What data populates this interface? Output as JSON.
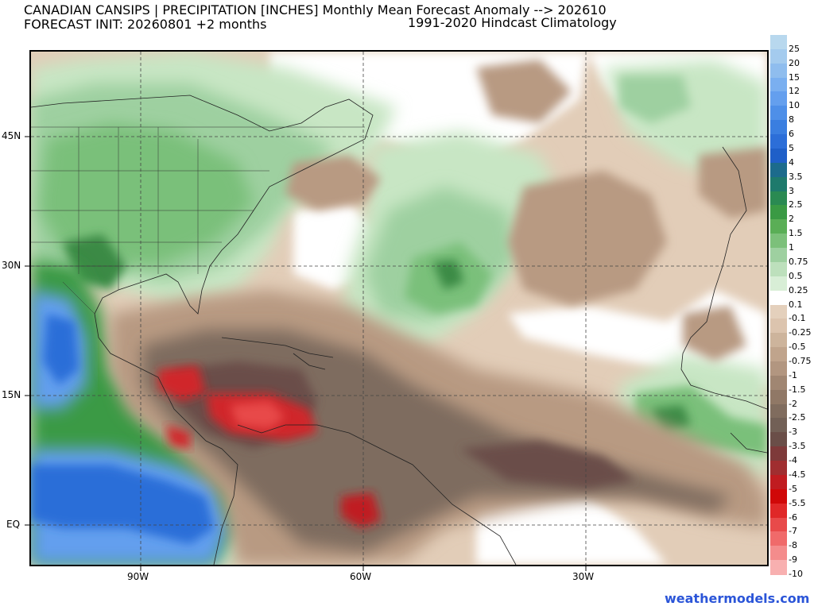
{
  "header": {
    "title_line1": "CANADIAN CANSIPS | PRECIPITATION [INCHES] Monthly Mean Forecast Anomaly --> 202610",
    "title_line2": "FORECAST INIT: 20260801  +2 months",
    "climatology": "1991-2020 Hindcast Climatology"
  },
  "map": {
    "lat_labels": [
      "45N",
      "30N",
      "15N",
      "EQ"
    ],
    "lon_labels": [
      "90W",
      "60W",
      "30W"
    ],
    "colors": {
      "land_dry_light": "#e6d2be",
      "dry_mid": "#b89a82",
      "dry_dark": "#7e6c5e",
      "dry_red": "#d0282c",
      "wet_light": "#c8e6c4",
      "wet_mid": "#7ac07a",
      "wet_dark": "#3a8a44",
      "wet_blue": "#2c6fe0"
    }
  },
  "colorbar": {
    "levels": [
      "25",
      "20",
      "15",
      "12",
      "10",
      "8",
      "6",
      "5",
      "4",
      "3.5",
      "3",
      "2.5",
      "2",
      "1.5",
      "1",
      "0.75",
      "0.5",
      "0.25",
      "0.1",
      "-0.1",
      "-0.25",
      "-0.5",
      "-0.75",
      "-1",
      "-1.5",
      "-2",
      "-2.5",
      "-3",
      "-3.5",
      "-4",
      "-4.5",
      "-5",
      "-5.5",
      "-6",
      "-7",
      "-8",
      "-9",
      "-10"
    ],
    "colors": [
      "#b8d8ee",
      "#a4cbee",
      "#8fbdee",
      "#7aaff0",
      "#649fee",
      "#4e8fe8",
      "#3a7ee0",
      "#2c6ed8",
      "#1f5fc8",
      "#1c6b8c",
      "#1e7a6c",
      "#2a8a52",
      "#3a9a44",
      "#5aae56",
      "#7cc07a",
      "#9ed0a0",
      "#bde0bc",
      "#d8eed6",
      "#ffffff",
      "#e4d0bc",
      "#dcc4ae",
      "#cdb49c",
      "#c0a48c",
      "#b29680",
      "#a08672",
      "#907866",
      "#806c5e",
      "#726056",
      "#6a4e48",
      "#7e3a3a",
      "#a02e30",
      "#c01c20",
      "#d00808",
      "#e02828",
      "#e84a4a",
      "#f06a6a",
      "#f48c8c",
      "#f8b0b0"
    ]
  },
  "footer": {
    "credit": "weathermodels.com"
  }
}
